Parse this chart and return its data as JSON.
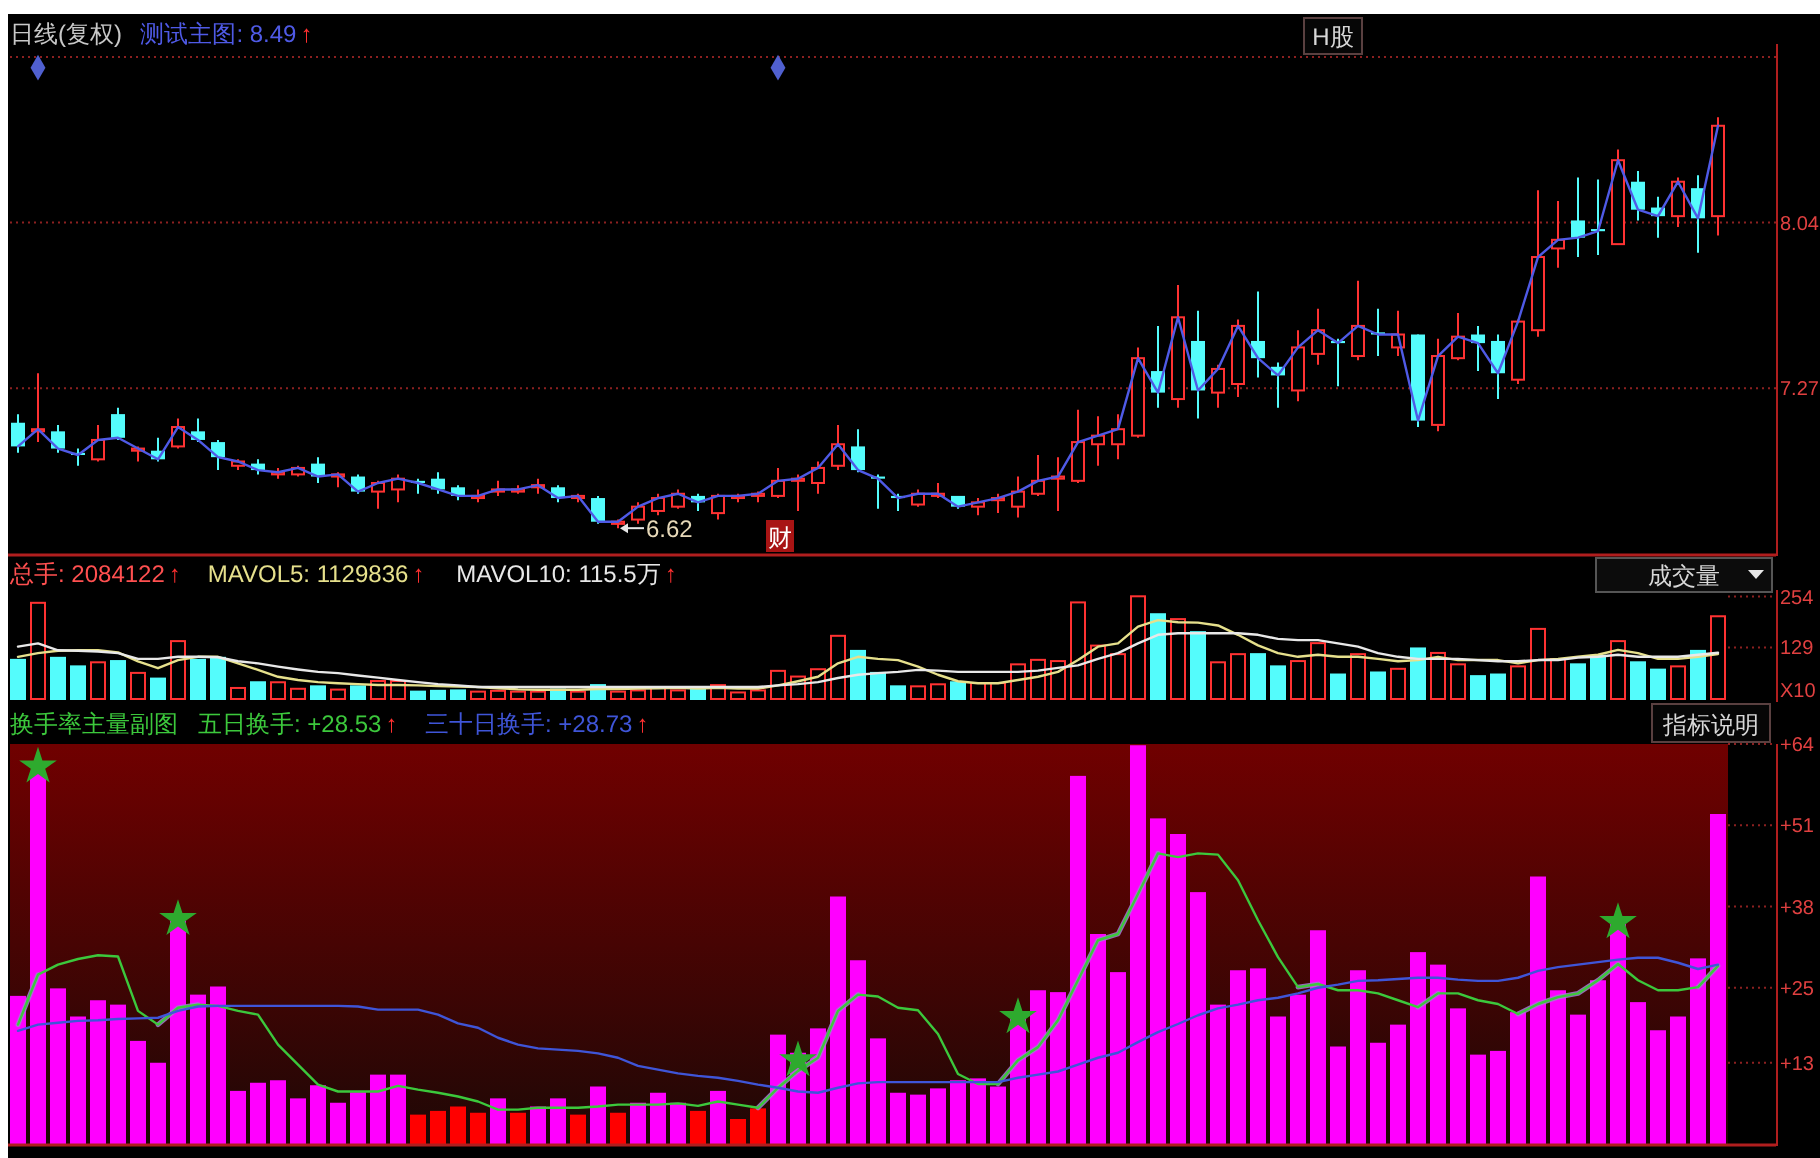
{
  "chart_data": [
    {
      "type": "candlestick",
      "title": "日线(复权)",
      "categories": [
        null,
        null,
        null,
        null,
        null,
        null,
        null,
        null,
        null,
        null,
        null,
        null,
        null,
        null,
        null,
        null,
        null,
        null,
        null,
        null,
        null,
        null,
        null,
        null,
        null,
        null,
        null,
        null,
        null,
        null,
        null,
        null,
        null,
        null,
        null,
        null,
        null,
        null,
        null,
        null,
        null,
        null,
        null,
        null,
        null,
        null,
        null,
        null,
        null,
        null,
        null,
        null,
        null,
        null,
        null,
        null,
        null,
        null,
        null,
        null,
        null,
        null,
        null,
        null,
        null,
        null,
        null,
        null,
        null,
        null,
        null,
        null,
        null,
        null,
        null,
        null,
        null,
        null,
        null,
        null,
        null,
        null,
        null,
        null,
        null,
        null
      ],
      "ohlc": [
        [
          7.11,
          7.15,
          6.97,
          7.0
        ],
        [
          7.07,
          7.34,
          7.02,
          7.08
        ],
        [
          7.07,
          7.1,
          6.97,
          6.99
        ],
        [
          6.97,
          6.99,
          6.91,
          6.96
        ],
        [
          6.94,
          7.1,
          6.93,
          7.03
        ],
        [
          7.15,
          7.18,
          7.03,
          7.04
        ],
        [
          6.98,
          7.0,
          6.93,
          6.99
        ],
        [
          6.98,
          7.04,
          6.93,
          6.94
        ],
        [
          7.0,
          7.13,
          6.99,
          7.09
        ],
        [
          7.07,
          7.13,
          7.02,
          7.03
        ],
        [
          7.02,
          7.03,
          6.89,
          6.95
        ],
        [
          6.91,
          6.94,
          6.89,
          6.93
        ],
        [
          6.92,
          6.94,
          6.87,
          6.89
        ],
        [
          6.87,
          6.9,
          6.85,
          6.88
        ],
        [
          6.87,
          6.91,
          6.86,
          6.9
        ],
        [
          6.92,
          6.95,
          6.83,
          6.86
        ],
        [
          6.86,
          6.88,
          6.81,
          6.87
        ],
        [
          6.86,
          6.87,
          6.78,
          6.79
        ],
        [
          6.79,
          6.84,
          6.71,
          6.83
        ],
        [
          6.8,
          6.87,
          6.74,
          6.85
        ],
        [
          6.84,
          6.85,
          6.78,
          6.83
        ],
        [
          6.85,
          6.88,
          6.78,
          6.8
        ],
        [
          6.81,
          6.82,
          6.75,
          6.77
        ],
        [
          6.76,
          6.8,
          6.74,
          6.77
        ],
        [
          6.79,
          6.84,
          6.77,
          6.8
        ],
        [
          6.79,
          6.82,
          6.78,
          6.8
        ],
        [
          6.81,
          6.85,
          6.78,
          6.82
        ],
        [
          6.81,
          6.82,
          6.74,
          6.76
        ],
        [
          6.76,
          6.78,
          6.74,
          6.77
        ],
        [
          6.76,
          6.77,
          6.64,
          6.65
        ],
        [
          6.64,
          6.66,
          6.62,
          6.65
        ],
        [
          6.66,
          6.74,
          6.64,
          6.72
        ],
        [
          6.7,
          6.78,
          6.68,
          6.76
        ],
        [
          6.72,
          6.8,
          6.71,
          6.78
        ],
        [
          6.77,
          6.78,
          6.7,
          6.74
        ],
        [
          6.69,
          6.78,
          6.66,
          6.77
        ],
        [
          6.76,
          6.78,
          6.74,
          6.77
        ],
        [
          6.77,
          6.79,
          6.74,
          6.78
        ],
        [
          6.77,
          6.9,
          6.76,
          6.84
        ],
        [
          6.84,
          6.87,
          6.7,
          6.85
        ],
        [
          6.83,
          6.93,
          6.78,
          6.9
        ],
        [
          6.91,
          7.1,
          6.89,
          7.01
        ],
        [
          7.0,
          7.08,
          6.88,
          6.89
        ],
        [
          6.86,
          6.87,
          6.71,
          6.85
        ],
        [
          6.77,
          6.78,
          6.7,
          6.76
        ],
        [
          6.73,
          6.8,
          6.72,
          6.78
        ],
        [
          6.77,
          6.83,
          6.76,
          6.78
        ],
        [
          6.77,
          6.77,
          6.71,
          6.72
        ],
        [
          6.72,
          6.76,
          6.68,
          6.74
        ],
        [
          6.75,
          6.78,
          6.69,
          6.76
        ],
        [
          6.72,
          6.86,
          6.67,
          6.79
        ],
        [
          6.78,
          6.96,
          6.77,
          6.84
        ],
        [
          6.85,
          6.95,
          6.7,
          6.86
        ],
        [
          6.84,
          7.17,
          6.83,
          7.02
        ],
        [
          7.01,
          7.14,
          6.91,
          7.05
        ],
        [
          7.01,
          7.15,
          6.94,
          7.08
        ],
        [
          7.05,
          7.46,
          7.04,
          7.41
        ],
        [
          7.35,
          7.56,
          7.18,
          7.25
        ],
        [
          7.22,
          7.75,
          7.18,
          7.6
        ],
        [
          7.49,
          7.63,
          7.13,
          7.26
        ],
        [
          7.25,
          7.38,
          7.18,
          7.36
        ],
        [
          7.29,
          7.59,
          7.23,
          7.56
        ],
        [
          7.49,
          7.72,
          7.32,
          7.41
        ],
        [
          7.37,
          7.39,
          7.18,
          7.33
        ],
        [
          7.26,
          7.54,
          7.21,
          7.46
        ],
        [
          7.43,
          7.64,
          7.38,
          7.54
        ],
        [
          7.49,
          7.5,
          7.28,
          7.48
        ],
        [
          7.42,
          7.77,
          7.4,
          7.56
        ],
        [
          7.53,
          7.64,
          7.42,
          7.52
        ],
        [
          7.46,
          7.63,
          7.42,
          7.52
        ],
        [
          7.52,
          7.52,
          7.09,
          7.12
        ],
        [
          7.1,
          7.5,
          7.07,
          7.42
        ],
        [
          7.41,
          7.62,
          7.4,
          7.51
        ],
        [
          7.52,
          7.56,
          7.35,
          7.48
        ],
        [
          7.49,
          7.52,
          7.22,
          7.34
        ],
        [
          7.31,
          7.59,
          7.29,
          7.58
        ],
        [
          7.54,
          8.19,
          7.51,
          7.88
        ],
        [
          7.92,
          8.14,
          7.83,
          7.96
        ],
        [
          8.05,
          8.25,
          7.88,
          7.97
        ],
        [
          8.01,
          8.24,
          7.89,
          8.0
        ],
        [
          7.94,
          8.38,
          7.94,
          8.33
        ],
        [
          8.23,
          8.28,
          8.05,
          8.1
        ],
        [
          8.11,
          8.16,
          7.97,
          8.07
        ],
        [
          8.07,
          8.25,
          8.02,
          8.23
        ],
        [
          8.2,
          8.26,
          7.9,
          8.06
        ],
        [
          8.07,
          8.53,
          7.98,
          8.49
        ]
      ],
      "colors": [
        "#54fcfc",
        "#ff3232",
        "#54fcfc",
        "#54fcfc",
        "#ff3232",
        "#54fcfc",
        "#ff3232",
        "#54fcfc",
        "#ff3232",
        "#54fcfc",
        "#54fcfc",
        "#ff3232",
        "#54fcfc",
        "#ff3232",
        "#ff3232",
        "#54fcfc",
        "#ff3232",
        "#54fcfc",
        "#ff3232",
        "#ff3232",
        "#54fcfc",
        "#54fcfc",
        "#54fcfc",
        "#ff3232",
        "#ff3232",
        "#ff3232",
        "#ff3232",
        "#54fcfc",
        "#ff3232",
        "#54fcfc",
        "#ff3232",
        "#ff3232",
        "#ff3232",
        "#ff3232",
        "#54fcfc",
        "#ff3232",
        "#ff3232",
        "#ff3232",
        "#ff3232",
        "#ff3232",
        "#ff3232",
        "#ff3232",
        "#54fcfc",
        "#54fcfc",
        "#54fcfc",
        "#ff3232",
        "#ff3232",
        "#54fcfc",
        "#ff3232",
        "#ff3232",
        "#ff3232",
        "#ff3232",
        "#ff3232",
        "#ff3232",
        "#ff3232",
        "#ff3232",
        "#ff3232",
        "#54fcfc",
        "#ff3232",
        "#54fcfc",
        "#ff3232",
        "#ff3232",
        "#54fcfc",
        "#54fcfc",
        "#ff3232",
        "#ff3232",
        "#54fcfc",
        "#ff3232",
        "#54fcfc",
        "#ff3232",
        "#54fcfc",
        "#ff3232",
        "#ff3232",
        "#54fcfc",
        "#54fcfc",
        "#ff3232",
        "#ff3232",
        "#ff3232",
        "#54fcfc",
        "#54fcfc",
        "#ff3232",
        "#54fcfc",
        "#54fcfc",
        "#ff3232",
        "#54fcfc",
        "#ff3232"
      ],
      "series": [
        {
          "type": "line",
          "name": "测试主图: 8.49↑",
          "color": "#4f5ae6",
          "values": [
            7.0,
            7.08,
            6.99,
            6.96,
            7.03,
            7.04,
            6.99,
            6.94,
            7.09,
            7.03,
            6.95,
            6.93,
            6.89,
            6.88,
            6.9,
            6.86,
            6.87,
            6.79,
            6.83,
            6.85,
            6.83,
            6.8,
            6.77,
            6.77,
            6.8,
            6.8,
            6.82,
            6.76,
            6.77,
            6.65,
            6.65,
            6.72,
            6.76,
            6.78,
            6.74,
            6.77,
            6.77,
            6.78,
            6.84,
            6.85,
            6.9,
            7.01,
            6.89,
            6.85,
            6.76,
            6.78,
            6.78,
            6.72,
            6.74,
            6.76,
            6.79,
            6.84,
            6.86,
            7.02,
            7.05,
            7.08,
            7.41,
            7.25,
            7.6,
            7.26,
            7.36,
            7.56,
            7.41,
            7.33,
            7.46,
            7.54,
            7.48,
            7.56,
            7.52,
            7.52,
            7.12,
            7.42,
            7.51,
            7.48,
            7.34,
            7.58,
            7.88,
            7.96,
            7.97,
            8.0,
            8.33,
            8.1,
            8.07,
            8.23,
            8.06,
            8.49
          ]
        },
        {
          "type": "scatter",
          "marker": "diamond",
          "color": "#5060d0",
          "values": [
            null,
            8.76,
            null,
            null,
            null,
            null,
            null,
            null,
            null,
            null,
            null,
            null,
            null,
            null,
            null,
            null,
            null,
            null,
            null,
            null,
            null,
            null,
            null,
            null,
            null,
            null,
            null,
            null,
            null,
            null,
            null,
            null,
            null,
            null,
            null,
            null,
            null,
            null,
            8.76,
            null,
            null,
            null,
            null,
            null,
            null,
            null,
            null,
            null,
            null,
            null,
            null,
            null,
            null,
            null,
            null,
            null,
            null,
            null,
            null,
            null,
            null,
            null,
            null,
            null,
            null,
            null,
            null,
            null,
            null,
            null,
            null,
            null,
            null,
            null,
            null,
            null,
            null,
            null,
            null,
            null,
            null,
            null,
            null,
            null,
            null,
            null
          ]
        }
      ],
      "ylim": [
        6.5,
        8.87
      ],
      "yticks": [
        {
          "value": 8.81,
          "label": null
        },
        8.04,
        7.27
      ],
      "grid": "y",
      "legend": "top left",
      "tick_labels": "y",
      "annotations": [
        "H股",
        "财",
        "6.62"
      ]
    },
    {
      "type": "bar",
      "categories": [
        null,
        null,
        null,
        null,
        null,
        null,
        null,
        null,
        null,
        null,
        null,
        null,
        null,
        null,
        null,
        null,
        null,
        null,
        null,
        null,
        null,
        null,
        null,
        null,
        null,
        null,
        null,
        null,
        null,
        null,
        null,
        null,
        null,
        null,
        null,
        null,
        null,
        null,
        null,
        null,
        null,
        null,
        null,
        null,
        null,
        null,
        null,
        null,
        null,
        null,
        null,
        null,
        null,
        null,
        null,
        null,
        null,
        null,
        null,
        null,
        null,
        null,
        null,
        null,
        null,
        null,
        null,
        null,
        null,
        null,
        null,
        null,
        null,
        null,
        null,
        null,
        null,
        null,
        null,
        null,
        null,
        null,
        null,
        null,
        null,
        null
      ],
      "series": [
        {
          "name": "总手: 2084122↑",
          "color": "#ff5050",
          "colors": [
            "#54fcfc",
            "#ff3232",
            "#54fcfc",
            "#54fcfc",
            "#ff3232",
            "#54fcfc",
            "#ff3232",
            "#54fcfc",
            "#ff3232",
            "#54fcfc",
            "#54fcfc",
            "#ff3232",
            "#54fcfc",
            "#ff3232",
            "#ff3232",
            "#54fcfc",
            "#ff3232",
            "#54fcfc",
            "#ff3232",
            "#ff3232",
            "#54fcfc",
            "#54fcfc",
            "#54fcfc",
            "#ff3232",
            "#ff3232",
            "#ff3232",
            "#ff3232",
            "#54fcfc",
            "#ff3232",
            "#54fcfc",
            "#ff3232",
            "#ff3232",
            "#ff3232",
            "#ff3232",
            "#54fcfc",
            "#ff3232",
            "#ff3232",
            "#ff3232",
            "#ff3232",
            "#ff3232",
            "#ff3232",
            "#ff3232",
            "#54fcfc",
            "#54fcfc",
            "#54fcfc",
            "#ff3232",
            "#ff3232",
            "#54fcfc",
            "#ff3232",
            "#ff3232",
            "#ff3232",
            "#ff3232",
            "#ff3232",
            "#ff3232",
            "#ff3232",
            "#ff3232",
            "#ff3232",
            "#54fcfc",
            "#ff3232",
            "#54fcfc",
            "#ff3232",
            "#ff3232",
            "#54fcfc",
            "#54fcfc",
            "#ff3232",
            "#ff3232",
            "#54fcfc",
            "#ff3232",
            "#54fcfc",
            "#ff3232",
            "#54fcfc",
            "#ff3232",
            "#ff3232",
            "#54fcfc",
            "#54fcfc",
            "#ff3232",
            "#ff3232",
            "#ff3232",
            "#54fcfc",
            "#54fcfc",
            "#ff3232",
            "#54fcfc",
            "#54fcfc",
            "#ff3232",
            "#54fcfc",
            "#ff3232"
          ],
          "values": [
            101,
            241,
            106,
            85,
            95,
            98,
            69,
            55,
            147,
            101,
            106,
            32,
            46,
            46,
            30,
            36,
            28,
            36,
            49,
            49,
            23,
            25,
            26,
            23,
            25,
            23,
            23,
            28,
            23,
            39,
            23,
            26,
            34,
            26,
            28,
            39,
            21,
            26,
            74,
            60,
            78,
            160,
            123,
            69,
            36,
            36,
            41,
            46,
            44,
            44,
            90,
            101,
            98,
            242,
            136,
            115,
            257,
            213,
            201,
            169,
            95,
            115,
            115,
            85,
            98,
            142,
            65,
            115,
            70,
            79,
            129,
            118,
            90,
            61,
            65,
            85,
            177,
            103,
            90,
            111,
            147,
            95,
            77,
            85,
            123,
            208
          ]
        },
        {
          "type": "line",
          "name": "MAVOL5: 1129836↑",
          "color": "#e6e08c",
          "values": [
            106,
            115,
            121,
            122,
            122,
            117,
            95,
            78,
            98,
            106,
            106,
            90,
            74,
            57,
            49,
            44,
            41,
            39,
            37,
            37,
            36,
            34,
            33,
            32,
            29,
            26,
            25,
            25,
            25,
            27,
            27,
            28,
            29,
            30,
            28,
            30,
            28,
            28,
            36,
            46,
            57,
            90,
            106,
            101,
            98,
            82,
            62,
            46,
            41,
            41,
            49,
            57,
            69,
            98,
            131,
            139,
            180,
            196,
            191,
            190,
            183,
            160,
            134,
            115,
            106,
            111,
            106,
            106,
            101,
            95,
            98,
            106,
            98,
            98,
            98,
            90,
            98,
            101,
            106,
            111,
            123,
            115,
            101,
            101,
            106,
            113
          ]
        },
        {
          "type": "line",
          "name": "MAVOL10: 115.5万↑",
          "color": "#e8e8e8",
          "values": [
            131,
            139,
            122,
            121,
            119,
            115,
            101,
            101,
            106,
            106,
            105,
            95,
            90,
            82,
            75,
            69,
            66,
            60,
            55,
            49,
            44,
            39,
            36,
            32,
            32,
            32,
            32,
            32,
            32,
            32,
            32,
            32,
            32,
            32,
            32,
            32,
            32,
            32,
            36,
            39,
            44,
            54,
            62,
            66,
            69,
            74,
            72,
            69,
            69,
            69,
            69,
            72,
            79,
            85,
            101,
            115,
            139,
            160,
            164,
            164,
            164,
            164,
            160,
            150,
            147,
            147,
            139,
            131,
            115,
            106,
            101,
            101,
            101,
            98,
            95,
            95,
            98,
            98,
            104,
            106,
            111,
            106,
            106,
            106,
            111,
            116
          ]
        }
      ],
      "ylim": [
        0,
        270
      ],
      "yticks": [
        129,
        254
      ],
      "ylabel": "X10",
      "legend": "top left",
      "tick_labels": "y",
      "annotations": [
        "成交量"
      ]
    },
    {
      "type": "bar",
      "title": "换手率主量副图",
      "categories": [
        null,
        null,
        null,
        null,
        null,
        null,
        null,
        null,
        null,
        null,
        null,
        null,
        null,
        null,
        null,
        null,
        null,
        null,
        null,
        null,
        null,
        null,
        null,
        null,
        null,
        null,
        null,
        null,
        null,
        null,
        null,
        null,
        null,
        null,
        null,
        null,
        null,
        null,
        null,
        null,
        null,
        null,
        null,
        null,
        null,
        null,
        null,
        null,
        null,
        null,
        null,
        null,
        null,
        null,
        null,
        null,
        null,
        null,
        null,
        null,
        null,
        null,
        null,
        null,
        null,
        null,
        null,
        null,
        null,
        null,
        null,
        null,
        null,
        null,
        null,
        null,
        null,
        null,
        null,
        null,
        null,
        null,
        null,
        null,
        null,
        null
      ],
      "series": [
        {
          "colors": [
            "#ff00ff",
            "#ff00ff",
            "#ff00ff",
            "#ff00ff",
            "#ff00ff",
            "#ff00ff",
            "#ff00ff",
            "#ff00ff",
            "#ff00ff",
            "#ff00ff",
            "#ff00ff",
            "#ff00ff",
            "#ff00ff",
            "#ff00ff",
            "#ff00ff",
            "#ff00ff",
            "#ff00ff",
            "#ff00ff",
            "#ff00ff",
            "#ff00ff",
            "#ff0000",
            "#ff0000",
            "#ff0000",
            "#ff0000",
            "#ff00ff",
            "#ff0000",
            "#ff00ff",
            "#ff00ff",
            "#ff0000",
            "#ff00ff",
            "#ff0000",
            "#ff00ff",
            "#ff00ff",
            "#ff00ff",
            "#ff0000",
            "#ff00ff",
            "#ff0000",
            "#ff0000",
            "#ff00ff",
            "#ff00ff",
            "#ff00ff",
            "#ff00ff",
            "#ff00ff",
            "#ff00ff",
            "#ff00ff",
            "#ff00ff",
            "#ff00ff",
            "#ff00ff",
            "#ff00ff",
            "#ff00ff",
            "#ff00ff",
            "#ff00ff",
            "#ff00ff",
            "#ff00ff",
            "#ff00ff",
            "#ff00ff",
            "#ff00ff",
            "#ff00ff",
            "#ff00ff",
            "#ff00ff",
            "#ff00ff",
            "#ff00ff",
            "#ff00ff",
            "#ff00ff",
            "#ff00ff",
            "#ff00ff",
            "#ff00ff",
            "#ff00ff",
            "#ff00ff",
            "#ff00ff",
            "#ff00ff",
            "#ff00ff",
            "#ff00ff",
            "#ff00ff",
            "#ff00ff",
            "#ff00ff",
            "#ff00ff",
            "#ff00ff",
            "#ff00ff",
            "#ff00ff",
            "#ff00ff",
            "#ff00ff",
            "#ff00ff",
            "#ff00ff",
            "#ff00ff",
            "#ff00ff"
          ],
          "values": [
            23.7,
            59.5,
            24.9,
            20.4,
            23.0,
            22.3,
            16.5,
            13.0,
            35.8,
            23.9,
            25.2,
            8.5,
            9.8,
            10.2,
            7.3,
            9.4,
            6.6,
            8.3,
            11.1,
            11.1,
            4.7,
            5.3,
            6.0,
            5.0,
            7.3,
            5.0,
            6.0,
            7.3,
            4.7,
            9.2,
            5.0,
            6.6,
            8.2,
            6.6,
            5.3,
            8.5,
            4.0,
            5.7,
            17.5,
            14.6,
            18.5,
            39.6,
            29.4,
            16.9,
            8.2,
            7.9,
            8.9,
            10.2,
            10.5,
            9.2,
            21.1,
            24.6,
            24.3,
            58.9,
            33.6,
            27.5,
            63.8,
            52.1,
            49.6,
            40.3,
            22.3,
            27.8,
            28.1,
            20.4,
            23.9,
            34.2,
            15.6,
            27.8,
            16.2,
            19.1,
            30.7,
            28.7,
            21.7,
            14.3,
            14.9,
            21.1,
            42.8,
            24.6,
            20.7,
            26.2,
            35.8,
            22.7,
            18.2,
            20.4,
            29.7,
            52.8
          ]
        },
        {
          "type": "line",
          "color": "#a47ad6",
          "values": [
            19.1,
            27.1,
            null,
            null,
            null,
            null,
            null,
            19.1,
            21.8,
            22.3,
            null,
            null,
            null,
            null,
            null,
            null,
            null,
            null,
            null,
            null,
            null,
            null,
            null,
            null,
            null,
            null,
            null,
            null,
            null,
            null,
            null,
            null,
            null,
            null,
            null,
            null,
            null,
            5.8,
            9.0,
            11.7,
            13.8,
            21.3,
            23.9,
            null,
            null,
            null,
            null,
            null,
            null,
            9.6,
            13.4,
            15.5,
            19.8,
            26.2,
            32.6,
            33.6,
            40.0,
            46.5,
            null,
            null,
            null,
            null,
            null,
            null,
            25.1,
            25.6,
            null,
            null,
            null,
            null,
            21.9,
            24.1,
            null,
            null,
            null,
            20.8,
            22.4,
            23.5,
            24.1,
            26.2,
            28.8,
            null,
            null,
            null,
            25.1,
            28.5
          ]
        },
        {
          "type": "line",
          "name": "五日换手: +28.53↑",
          "color": "#3cc83c",
          "values": [
            19.1,
            27.1,
            28.7,
            29.6,
            30.2,
            30.0,
            21.3,
            19.1,
            21.8,
            22.3,
            22.1,
            21.3,
            20.7,
            15.9,
            12.7,
            9.5,
            8.4,
            8.4,
            8.4,
            9.3,
            8.7,
            8.2,
            7.6,
            6.8,
            5.5,
            5.5,
            5.8,
            5.8,
            5.8,
            6.0,
            6.3,
            6.3,
            6.3,
            6.5,
            6.1,
            6.8,
            6.3,
            5.8,
            9.0,
            11.7,
            13.8,
            21.3,
            23.9,
            23.6,
            21.8,
            21.4,
            17.6,
            11.2,
            9.6,
            9.6,
            13.4,
            15.5,
            19.8,
            26.2,
            32.6,
            33.6,
            40.0,
            46.5,
            45.9,
            46.5,
            46.3,
            42.2,
            35.8,
            29.9,
            25.1,
            25.6,
            24.6,
            24.6,
            24.1,
            23.0,
            21.9,
            24.1,
            24.1,
            23.0,
            22.4,
            20.8,
            22.4,
            23.5,
            24.1,
            26.2,
            28.8,
            26.2,
            24.6,
            24.6,
            25.1,
            28.5
          ]
        },
        {
          "type": "line",
          "name": "三十日换手: +28.73↑",
          "color": "#3f55d8",
          "values": [
            18.1,
            19.1,
            19.4,
            19.7,
            19.8,
            20.0,
            20.1,
            20.2,
            21.3,
            22.0,
            22.1,
            22.1,
            22.1,
            22.1,
            22.1,
            22.1,
            22.1,
            22.0,
            21.5,
            21.5,
            21.5,
            20.7,
            19.3,
            18.6,
            17.0,
            15.9,
            15.3,
            15.1,
            14.9,
            14.5,
            13.8,
            12.5,
            11.9,
            11.3,
            10.9,
            10.6,
            10.1,
            9.5,
            9.0,
            8.4,
            8.2,
            9.0,
            9.7,
            9.9,
            9.9,
            9.9,
            9.9,
            9.9,
            9.9,
            9.9,
            10.6,
            11.1,
            11.6,
            12.7,
            13.8,
            14.6,
            16.3,
            17.9,
            19.2,
            20.6,
            21.7,
            22.3,
            23.0,
            23.4,
            24.1,
            25.0,
            25.5,
            26.1,
            26.2,
            26.4,
            26.6,
            26.6,
            26.3,
            26.1,
            26.1,
            26.6,
            27.7,
            28.3,
            28.7,
            29.1,
            29.5,
            29.8,
            29.8,
            29.0,
            28.0,
            28.7
          ]
        },
        {
          "type": "scatter",
          "marker": "star",
          "color": "#2eaa2e",
          "values": [
            null,
            60.4,
            null,
            null,
            null,
            null,
            null,
            null,
            36.0,
            null,
            null,
            null,
            null,
            null,
            null,
            null,
            null,
            null,
            null,
            null,
            null,
            null,
            null,
            null,
            null,
            null,
            null,
            null,
            null,
            null,
            null,
            null,
            null,
            null,
            null,
            null,
            null,
            null,
            null,
            13.4,
            null,
            null,
            null,
            null,
            null,
            null,
            null,
            null,
            null,
            null,
            20.3,
            null,
            null,
            null,
            null,
            null,
            null,
            null,
            null,
            null,
            null,
            null,
            null,
            null,
            null,
            null,
            null,
            null,
            null,
            null,
            null,
            null,
            null,
            null,
            null,
            null,
            null,
            null,
            null,
            null,
            35.5,
            null,
            null,
            null,
            null,
            null
          ]
        }
      ],
      "ylim": [
        0,
        64
      ],
      "yticks": [
        {
          "value": 13,
          "label": "+13"
        },
        {
          "value": 25,
          "label": "+25"
        },
        {
          "value": 38,
          "label": "+38"
        },
        {
          "value": 51,
          "label": "+51"
        },
        {
          "value": 64,
          "label": "+64"
        }
      ],
      "legend": "top left",
      "tick_labels": "y",
      "annotations": [
        "指标说明"
      ]
    }
  ]
}
